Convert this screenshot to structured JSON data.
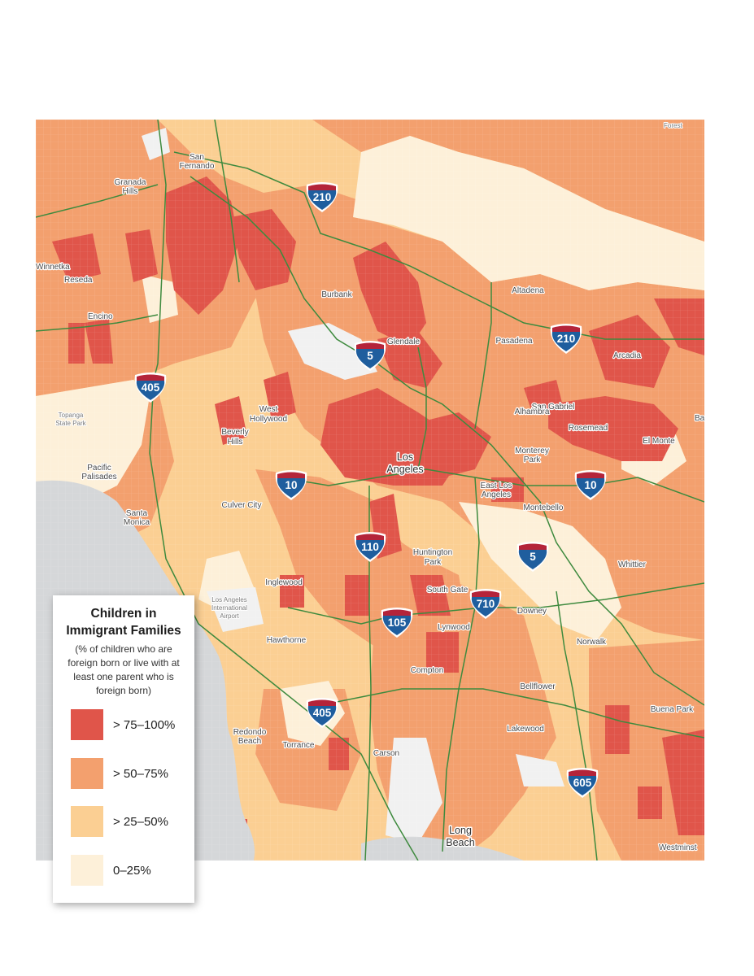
{
  "map": {
    "region": "Los Angeles",
    "colors": {
      "water": "#d5d7d9",
      "very_high": "#e0554a",
      "high": "#f3a06e",
      "medium": "#fbcf93",
      "low": "#fdf0d9",
      "park": "#f1f1f1",
      "freeway": "#3e8a3e",
      "shield_blue": "#1f5e9e",
      "shield_red": "#b4243a"
    },
    "places": [
      {
        "name": "San",
        "key": "san-fernando-1"
      },
      {
        "name": "Fernando",
        "key": "san-fernando-2"
      },
      {
        "name": "Granada",
        "key": "granada-hills-1"
      },
      {
        "name": "Hills",
        "key": "granada-hills-2"
      },
      {
        "name": "Winnetka",
        "key": "winnetka"
      },
      {
        "name": "Reseda",
        "key": "reseda"
      },
      {
        "name": "Encino",
        "key": "encino"
      },
      {
        "name": "Burbank",
        "key": "burbank"
      },
      {
        "name": "Glendale",
        "key": "glendale"
      },
      {
        "name": "Altadena",
        "key": "altadena"
      },
      {
        "name": "Pasadena",
        "key": "pasadena"
      },
      {
        "name": "Arcadia",
        "key": "arcadia"
      },
      {
        "name": "San Gabriel",
        "key": "san-gabriel"
      },
      {
        "name": "Alhambra",
        "key": "alhambra"
      },
      {
        "name": "Rosemead",
        "key": "rosemead"
      },
      {
        "name": "El Monte",
        "key": "el-monte"
      },
      {
        "name": "Monterey",
        "key": "monterey-park-1"
      },
      {
        "name": "Park",
        "key": "monterey-park-2"
      },
      {
        "name": "Topanga",
        "key": "topanga-1"
      },
      {
        "name": "State Park",
        "key": "topanga-2"
      },
      {
        "name": "West",
        "key": "west-hollywood-1"
      },
      {
        "name": "Hollywood",
        "key": "west-hollywood-2"
      },
      {
        "name": "Beverly",
        "key": "beverly-hills-1"
      },
      {
        "name": "Hills",
        "key": "beverly-hills-2"
      },
      {
        "name": "Los",
        "key": "los-angeles-1"
      },
      {
        "name": "Angeles",
        "key": "los-angeles-2"
      },
      {
        "name": "Pacific",
        "key": "pacific-palisades-1"
      },
      {
        "name": "Palisades",
        "key": "pacific-palisades-2"
      },
      {
        "name": "East Los",
        "key": "east-la-1"
      },
      {
        "name": "Angeles",
        "key": "east-la-2"
      },
      {
        "name": "Santa",
        "key": "santa-monica-1"
      },
      {
        "name": "Monica",
        "key": "santa-monica-2"
      },
      {
        "name": "Culver City",
        "key": "culver-city"
      },
      {
        "name": "Montebello",
        "key": "montebello"
      },
      {
        "name": "Huntington",
        "key": "huntington-park-1"
      },
      {
        "name": "Park",
        "key": "huntington-park-2"
      },
      {
        "name": "Whittier",
        "key": "whittier"
      },
      {
        "name": "Inglewood",
        "key": "inglewood"
      },
      {
        "name": "South Gate",
        "key": "south-gate"
      },
      {
        "name": "Los Angeles",
        "key": "lax-1"
      },
      {
        "name": "International",
        "key": "lax-2"
      },
      {
        "name": "Airport",
        "key": "lax-3"
      },
      {
        "name": "Downey",
        "key": "downey"
      },
      {
        "name": "Lynwood",
        "key": "lynwood"
      },
      {
        "name": "Hawthorne",
        "key": "hawthorne"
      },
      {
        "name": "Norwalk",
        "key": "norwalk"
      },
      {
        "name": "Compton",
        "key": "compton"
      },
      {
        "name": "Bellflower",
        "key": "bellflower"
      },
      {
        "name": "Buena Park",
        "key": "buena-park"
      },
      {
        "name": "Redondo",
        "key": "redondo-beach-1"
      },
      {
        "name": "Beach",
        "key": "redondo-beach-2"
      },
      {
        "name": "Torrance",
        "key": "torrance"
      },
      {
        "name": "Lakewood",
        "key": "lakewood"
      },
      {
        "name": "Carson",
        "key": "carson"
      },
      {
        "name": "Long",
        "key": "long-beach-1"
      },
      {
        "name": "Beach",
        "key": "long-beach-2"
      },
      {
        "name": "Westminst",
        "key": "westminster"
      },
      {
        "name": "Forest",
        "key": "forest"
      },
      {
        "name": "Ba",
        "key": "baldwin-park"
      }
    ],
    "freeways": [
      {
        "number": "210",
        "key": "i210-north"
      },
      {
        "number": "210",
        "key": "i210-east"
      },
      {
        "number": "5",
        "key": "i5-glendale"
      },
      {
        "number": "405",
        "key": "i405-north"
      },
      {
        "number": "10",
        "key": "i10-west"
      },
      {
        "number": "10",
        "key": "i10-east"
      },
      {
        "number": "110",
        "key": "i110"
      },
      {
        "number": "5",
        "key": "i5-south"
      },
      {
        "number": "710",
        "key": "i710"
      },
      {
        "number": "105",
        "key": "i105"
      },
      {
        "number": "405",
        "key": "i405-south"
      },
      {
        "number": "605",
        "key": "i605"
      }
    ]
  },
  "legend": {
    "title_line1": "Children in",
    "title_line2": "Immigrant Families",
    "desc_line1": "(% of children who are",
    "desc_line2": "foreign born or live with at",
    "desc_line3": "least one parent who is",
    "desc_line4": "foreign born)",
    "items": [
      {
        "label": "> 75–100%",
        "color": "#e0554a"
      },
      {
        "label": "> 50–75%",
        "color": "#f3a06e"
      },
      {
        "label": "> 25–50%",
        "color": "#fbcf93"
      },
      {
        "label": "0–25%",
        "color": "#fdf0d9"
      }
    ]
  }
}
